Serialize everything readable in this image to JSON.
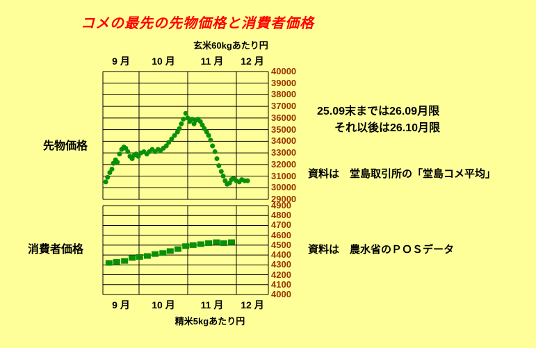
{
  "title": {
    "text": "コメの最先の先物価格と消費者価格"
  },
  "colors": {
    "background": "#ffff99",
    "title": "#ff0000",
    "axis_text": "#993300",
    "text": "#000000",
    "grid": "#000000",
    "marker": "#0a8f0a"
  },
  "labels": {
    "futures": "先物価格",
    "consumer": "消費者価格",
    "top_unit": "玄米60kgあたり円",
    "bottom_unit": "精米5kgあたり円"
  },
  "annotations": {
    "contract1": "25.09末までは26.09月限",
    "contract2": "それ以後は26.10月限",
    "source_futures": "資料は　堂島取引所の「堂島コメ平均」",
    "source_consumer": "資料は　農水省のＰＯＳデータ"
  },
  "chart_data": [
    {
      "type": "scatter",
      "title": "先物価格（堂島コメ平均）",
      "marker": "circle",
      "x_categories": [
        "9 月",
        "10 月",
        "11 月",
        "12 月"
      ],
      "x_unit": "months from 9/1 (0=9/1, 1=10/1, 2=11/1, 3=12/1)",
      "ylabel": "玄米60kgあたり円",
      "ylim": [
        29000,
        40000
      ],
      "yticks": [
        40000,
        39000,
        38000,
        37000,
        36000,
        35000,
        34000,
        33000,
        32000,
        31000,
        30000,
        29000
      ],
      "grid": true,
      "points": [
        [
          0.08,
          30500
        ],
        [
          0.13,
          30900
        ],
        [
          0.19,
          31300
        ],
        [
          0.25,
          31600
        ],
        [
          0.29,
          32100
        ],
        [
          0.35,
          32400
        ],
        [
          0.4,
          32200
        ],
        [
          0.46,
          32900
        ],
        [
          0.52,
          33300
        ],
        [
          0.58,
          33500
        ],
        [
          0.63,
          33400
        ],
        [
          0.69,
          33100
        ],
        [
          0.75,
          32700
        ],
        [
          0.81,
          32500
        ],
        [
          0.87,
          32800
        ],
        [
          0.92,
          32900
        ],
        [
          0.98,
          32700
        ],
        [
          1.04,
          33000
        ],
        [
          1.1,
          33100
        ],
        [
          1.16,
          32900
        ],
        [
          1.21,
          33100
        ],
        [
          1.27,
          33300
        ],
        [
          1.33,
          33100
        ],
        [
          1.39,
          33300
        ],
        [
          1.44,
          33200
        ],
        [
          1.5,
          33400
        ],
        [
          1.56,
          33600
        ],
        [
          1.61,
          33900
        ],
        [
          1.67,
          34200
        ],
        [
          1.73,
          34500
        ],
        [
          1.79,
          34800
        ],
        [
          1.83,
          35100
        ],
        [
          1.87,
          35500
        ],
        [
          1.91,
          35900
        ],
        [
          1.96,
          36400
        ],
        [
          2.0,
          36000
        ],
        [
          2.04,
          35700
        ],
        [
          2.09,
          35900
        ],
        [
          2.13,
          35500
        ],
        [
          2.17,
          35800
        ],
        [
          2.21,
          35900
        ],
        [
          2.26,
          35700
        ],
        [
          2.3,
          35400
        ],
        [
          2.34,
          35100
        ],
        [
          2.39,
          34800
        ],
        [
          2.43,
          34500
        ],
        [
          2.47,
          34100
        ],
        [
          2.51,
          33600
        ],
        [
          2.56,
          33100
        ],
        [
          2.6,
          32500
        ],
        [
          2.64,
          31900
        ],
        [
          2.69,
          31400
        ],
        [
          2.73,
          31000
        ],
        [
          2.77,
          30600
        ],
        [
          2.81,
          30300
        ],
        [
          2.86,
          30400
        ],
        [
          2.9,
          30700
        ],
        [
          2.94,
          30800
        ],
        [
          3.0,
          30600
        ],
        [
          3.09,
          30500
        ],
        [
          3.17,
          30700
        ],
        [
          3.26,
          30600
        ],
        [
          3.35,
          30600
        ]
      ]
    },
    {
      "type": "scatter",
      "title": "消費者価格（農水省ＰＯＳデータ）",
      "marker": "square",
      "x_categories": [
        "9 月",
        "10 月",
        "11 月",
        "12 月"
      ],
      "x_unit": "months from 9/1 (0=9/1, 1=10/1, 2=11/1, 3=12/1)",
      "ylabel": "精米5kgあたり円",
      "ylim": [
        4000,
        4900
      ],
      "yticks": [
        4900,
        4800,
        4700,
        4600,
        4500,
        4400,
        4300,
        4200,
        4100,
        4000
      ],
      "grid": true,
      "points": [
        [
          0.17,
          4320
        ],
        [
          0.38,
          4330
        ],
        [
          0.6,
          4340
        ],
        [
          0.81,
          4370
        ],
        [
          1.01,
          4380
        ],
        [
          1.17,
          4390
        ],
        [
          1.33,
          4410
        ],
        [
          1.49,
          4420
        ],
        [
          1.64,
          4440
        ],
        [
          1.8,
          4460
        ],
        [
          1.96,
          4490
        ],
        [
          2.11,
          4500
        ],
        [
          2.27,
          4510
        ],
        [
          2.43,
          4520
        ],
        [
          2.59,
          4530
        ],
        [
          2.74,
          4520
        ],
        [
          2.9,
          4530
        ]
      ]
    }
  ]
}
